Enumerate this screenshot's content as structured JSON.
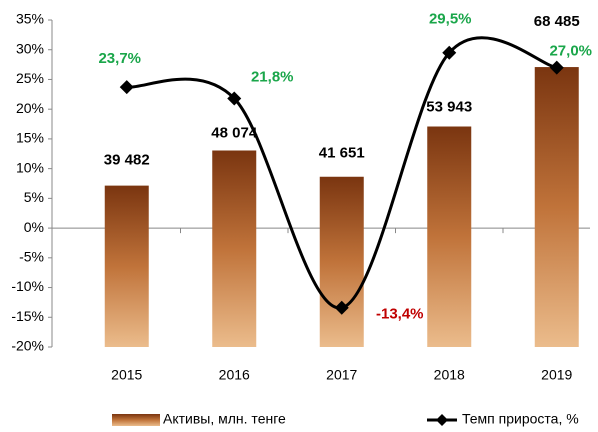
{
  "chart_data": {
    "type": "bar-line",
    "categories": [
      "2015",
      "2016",
      "2017",
      "2018",
      "2019"
    ],
    "series": [
      {
        "name": "Активы, млн. тенге",
        "type": "bar",
        "axis": "y2",
        "color": "#a0552a",
        "values": [
          39482,
          48074,
          41651,
          53943,
          68485
        ],
        "value_labels": [
          "39 482",
          "48 074",
          "41 651",
          "53 943",
          "68 485"
        ]
      },
      {
        "name": "Темп прироста, %",
        "type": "line",
        "axis": "y",
        "color": "#000000",
        "smooth": true,
        "values": [
          23.7,
          21.8,
          -13.4,
          29.5,
          27.0
        ],
        "value_labels": [
          "23,7%",
          "21,8%",
          "-13,4%",
          "29,5%",
          "27,0%"
        ],
        "label_color": "#1aa64a",
        "negative_label_color": "#c00000"
      }
    ],
    "ylim": [
      -20,
      35
    ],
    "yticks": [
      {
        "value": 35,
        "label": "35%"
      },
      {
        "value": 30,
        "label": "30%"
      },
      {
        "value": 25,
        "label": "25%"
      },
      {
        "value": 20,
        "label": "20%"
      },
      {
        "value": 15,
        "label": "15%"
      },
      {
        "value": 10,
        "label": "10%"
      },
      {
        "value": 5,
        "label": "5%"
      },
      {
        "value": 0,
        "label": "0%"
      },
      {
        "value": -5,
        "label": "-5%"
      },
      {
        "value": -10,
        "label": "-10%"
      },
      {
        "value": -15,
        "label": "-15%"
      },
      {
        "value": -20,
        "label": "-20%"
      }
    ],
    "y2lim": [
      0,
      80000
    ],
    "legend": "bottom"
  }
}
